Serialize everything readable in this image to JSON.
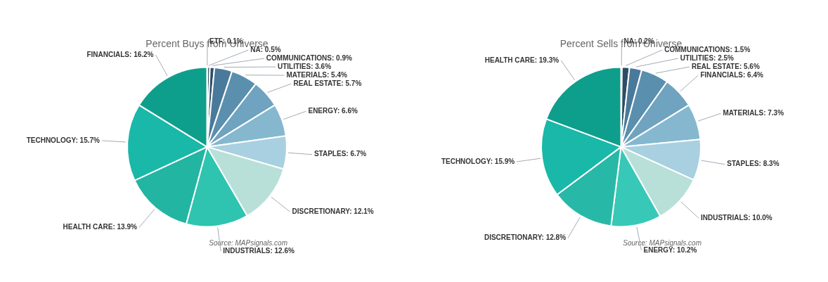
{
  "chart_data": [
    {
      "type": "pie",
      "title": "Percent Buys from Universe",
      "categories": [
        "ETF: 0.1%",
        "NA: 0.5%",
        "COMMUNICATIONS: 0.9%",
        "UTILITIES: 3.6%",
        "MATERIALS: 5.4%",
        "REAL ESTATE: 5.7%",
        "ENERGY: 6.6%",
        "STAPLES: 6.7%",
        "DISCRETIONARY: 12.1%",
        "INDUSTRIALS: 12.6%",
        "HEALTH CARE: 13.9%",
        "TECHNOLOGY: 15.7%",
        "FINANCIALS: 16.2%"
      ],
      "values": [
        0.1,
        0.5,
        0.9,
        3.6,
        5.4,
        5.7,
        6.6,
        6.7,
        12.1,
        12.6,
        13.9,
        15.7,
        16.2
      ],
      "colors": [
        "#1e2d3d",
        "#263c50",
        "#2e4d65",
        "#4a7a9b",
        "#5a8fae",
        "#6fa3bf",
        "#85b8cf",
        "#a8d0e0",
        "#b8e0d8",
        "#2ec4b0",
        "#22b5a2",
        "#1ab8a8",
        "#0e9e8c"
      ],
      "annotations": [
        "Source: MAPsignals.com"
      ]
    },
    {
      "type": "pie",
      "title": "Percent Sells from Universe",
      "categories": [
        "NA: 0.2%",
        "COMMUNICATIONS: 1.5%",
        "UTILITIES: 2.5%",
        "REAL ESTATE: 5.6%",
        "FINANCIALS: 6.4%",
        "MATERIALS: 7.3%",
        "STAPLES: 8.3%",
        "INDUSTRIALS: 10.0%",
        "ENERGY: 10.2%",
        "DISCRETIONARY: 12.8%",
        "TECHNOLOGY: 15.9%",
        "HEALTH CARE: 19.3%"
      ],
      "values": [
        0.2,
        1.5,
        2.5,
        5.6,
        6.4,
        7.3,
        8.3,
        10.0,
        10.2,
        12.8,
        15.9,
        19.3
      ],
      "colors": [
        "#1e2d3d",
        "#2e4d65",
        "#4a7a9b",
        "#5a8fae",
        "#6fa3bf",
        "#85b8cf",
        "#a8d0e0",
        "#b8e0d8",
        "#38c8b8",
        "#28b8a8",
        "#1ab8a8",
        "#0e9e8c"
      ],
      "annotations": [
        "Source: MAPsignals.com"
      ]
    }
  ]
}
